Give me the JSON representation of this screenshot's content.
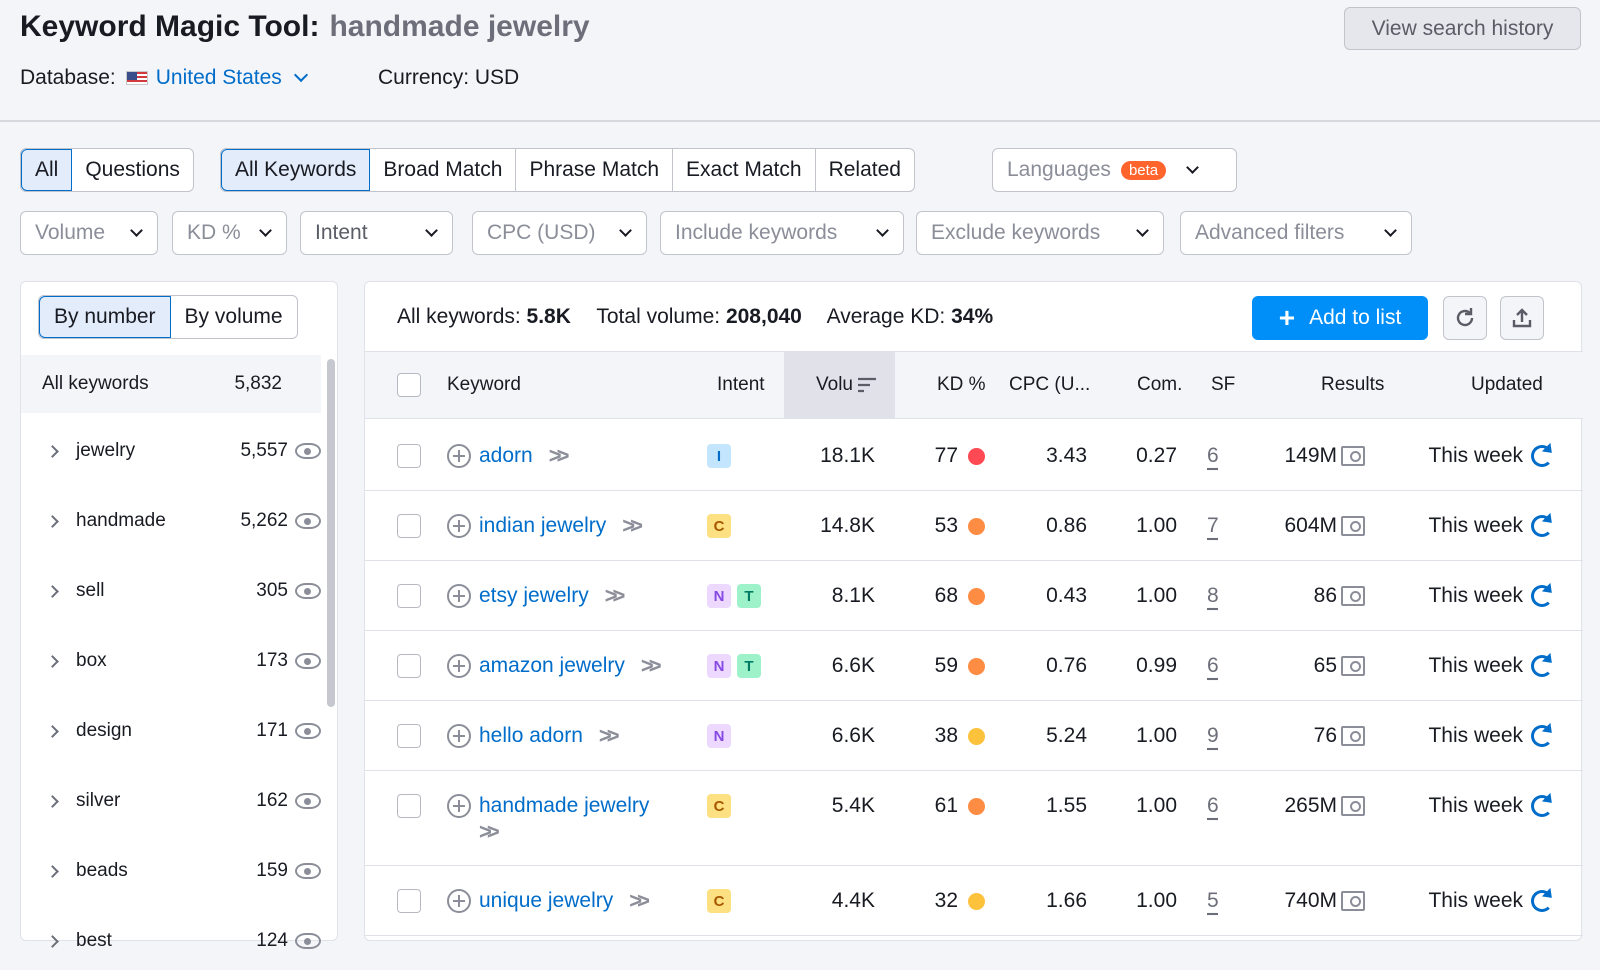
{
  "header": {
    "title": "Keyword Magic Tool:",
    "query": "handmade jewelry",
    "database_label": "Database:",
    "database_value": "United States",
    "currency": "Currency: USD",
    "history_button": "View search history"
  },
  "tabs_question": [
    "All",
    "Questions"
  ],
  "tabs_match": [
    "All Keywords",
    "Broad Match",
    "Phrase Match",
    "Exact Match",
    "Related"
  ],
  "languages": {
    "label": "Languages",
    "badge": "beta"
  },
  "filters": [
    "Volume",
    "KD %",
    "Intent",
    "CPC (USD)",
    "Include keywords",
    "Exclude keywords",
    "Advanced filters"
  ],
  "left": {
    "toggle": [
      "By number",
      "By volume"
    ],
    "all_label": "All keywords",
    "all_count": "5,832",
    "groups": [
      {
        "name": "jewelry",
        "count": "5,557"
      },
      {
        "name": "handmade",
        "count": "5,262"
      },
      {
        "name": "sell",
        "count": "305"
      },
      {
        "name": "box",
        "count": "173"
      },
      {
        "name": "design",
        "count": "171"
      },
      {
        "name": "silver",
        "count": "162"
      },
      {
        "name": "beads",
        "count": "159"
      },
      {
        "name": "best",
        "count": "124"
      }
    ]
  },
  "summary": {
    "all_label": "All keywords:",
    "all_value": "5.8K",
    "vol_label": "Total volume:",
    "vol_value": "208,040",
    "kd_label": "Average KD:",
    "kd_value": "34%"
  },
  "add_button": "Add to list",
  "columns": {
    "keyword": "Keyword",
    "intent": "Intent",
    "volume": "Volu",
    "kd": "KD %",
    "cpc": "CPC (U...",
    "com": "Com.",
    "sf": "SF",
    "results": "Results",
    "updated": "Updated"
  },
  "colors": {
    "hard": "#ff4953",
    "difficult": "#ff8c43",
    "possible": "#fdc23c",
    "accent": "#008ff8",
    "link": "#006dca"
  },
  "rows": [
    {
      "keyword": "adorn",
      "intents": [
        "I"
      ],
      "volume": "18.1K",
      "kd": "77",
      "kd_color": "#ff4953",
      "cpc": "3.43",
      "com": "0.27",
      "sf": "6",
      "results": "149M",
      "updated": "This week"
    },
    {
      "keyword": "indian jewelry",
      "intents": [
        "C"
      ],
      "volume": "14.8K",
      "kd": "53",
      "kd_color": "#ff8c43",
      "cpc": "0.86",
      "com": "1.00",
      "sf": "7",
      "results": "604M",
      "updated": "This week"
    },
    {
      "keyword": "etsy jewelry",
      "intents": [
        "N",
        "T"
      ],
      "volume": "8.1K",
      "kd": "68",
      "kd_color": "#ff8c43",
      "cpc": "0.43",
      "com": "1.00",
      "sf": "8",
      "results": "86",
      "updated": "This week"
    },
    {
      "keyword": "amazon jewelry",
      "intents": [
        "N",
        "T"
      ],
      "volume": "6.6K",
      "kd": "59",
      "kd_color": "#ff8c43",
      "cpc": "0.76",
      "com": "0.99",
      "sf": "6",
      "results": "65",
      "updated": "This week"
    },
    {
      "keyword": "hello adorn",
      "intents": [
        "N"
      ],
      "volume": "6.6K",
      "kd": "38",
      "kd_color": "#fdc23c",
      "cpc": "5.24",
      "com": "1.00",
      "sf": "9",
      "results": "76",
      "updated": "This week"
    },
    {
      "keyword": "handmade jewelry",
      "intents": [
        "C"
      ],
      "volume": "5.4K",
      "kd": "61",
      "kd_color": "#ff8c43",
      "cpc": "1.55",
      "com": "1.00",
      "sf": "6",
      "results": "265M",
      "updated": "This week"
    },
    {
      "keyword": "unique jewelry",
      "intents": [
        "C"
      ],
      "volume": "4.4K",
      "kd": "32",
      "kd_color": "#fdc23c",
      "cpc": "1.66",
      "com": "1.00",
      "sf": "5",
      "results": "740M",
      "updated": "This week"
    }
  ]
}
